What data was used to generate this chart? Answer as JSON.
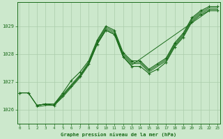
{
  "bg_color": "#cce8cc",
  "plot_bg_color": "#cce8cc",
  "grid_color": "#aaccaa",
  "line_color": "#1a6b1a",
  "title": "Graphe pression niveau de la mer (hPa)",
  "ylim": [
    1025.5,
    1029.85
  ],
  "xlim": [
    -0.3,
    23.3
  ],
  "xticks": [
    0,
    1,
    2,
    3,
    4,
    5,
    6,
    7,
    8,
    9,
    10,
    11,
    12,
    13,
    14,
    15,
    16,
    17,
    18,
    19,
    20,
    21,
    22,
    23
  ],
  "yticks": [
    1026,
    1027,
    1028,
    1029
  ],
  "ylabel_labels": [
    "1026",
    "1027",
    "1028",
    "1029"
  ],
  "lines": [
    {
      "x": [
        0,
        1,
        2,
        3,
        4,
        5,
        6,
        7,
        8,
        9,
        10,
        11,
        12,
        13,
        14,
        15,
        16,
        17,
        18,
        19,
        20,
        21,
        22,
        23
      ],
      "y": [
        1026.6,
        1026.6,
        1026.15,
        1026.2,
        1026.2,
        1026.6,
        1027.05,
        1027.35,
        1027.75,
        1028.5,
        1029.0,
        1028.85,
        1028.05,
        1027.75,
        1027.75,
        1027.45,
        1027.65,
        1027.85,
        1028.4,
        1028.75,
        1029.3,
        1029.55,
        1029.7,
        1029.7
      ],
      "marker": true
    },
    {
      "x": [
        2,
        3,
        4,
        5,
        6,
        7,
        8,
        9,
        10,
        11,
        12,
        13,
        14,
        15,
        16,
        17,
        18,
        19,
        20,
        21,
        22,
        23
      ],
      "y": [
        1026.15,
        1026.2,
        1026.2,
        1026.55,
        1026.9,
        1027.25,
        1027.7,
        1028.45,
        1028.95,
        1028.8,
        1028.0,
        1027.7,
        1027.7,
        1027.4,
        1027.6,
        1027.8,
        1028.35,
        1028.7,
        1029.25,
        1029.5,
        1029.65,
        1029.65
      ],
      "marker": false
    },
    {
      "x": [
        2,
        3,
        4,
        5,
        6,
        7,
        8,
        9,
        10,
        11,
        12,
        13,
        14,
        15,
        16,
        17,
        18,
        19,
        20,
        21,
        22,
        23
      ],
      "y": [
        1026.15,
        1026.2,
        1026.2,
        1026.5,
        1026.85,
        1027.2,
        1027.65,
        1028.4,
        1028.9,
        1028.75,
        1027.95,
        1027.65,
        1027.65,
        1027.35,
        1027.55,
        1027.75,
        1028.3,
        1028.65,
        1029.2,
        1029.45,
        1029.6,
        1029.6
      ],
      "marker": false
    },
    {
      "x": [
        2,
        3,
        4,
        5,
        6,
        7,
        8,
        9,
        10,
        11,
        12,
        13,
        22,
        23
      ],
      "y": [
        1026.1,
        1026.15,
        1026.15,
        1026.45,
        1026.8,
        1027.15,
        1027.6,
        1028.35,
        1028.85,
        1028.7,
        1027.9,
        1027.6,
        1029.55,
        1029.55
      ],
      "marker": false
    },
    {
      "x": [
        0,
        1,
        2,
        3,
        4,
        5,
        6,
        7,
        8,
        9,
        10,
        11,
        12,
        13,
        14,
        15,
        16,
        17,
        18,
        19,
        20,
        21,
        22,
        23
      ],
      "y": [
        1026.6,
        1026.6,
        1026.15,
        1026.2,
        1026.15,
        1026.5,
        1026.85,
        1027.2,
        1027.65,
        1028.35,
        1028.85,
        1028.7,
        1027.9,
        1027.55,
        1027.55,
        1027.3,
        1027.45,
        1027.7,
        1028.25,
        1028.6,
        1029.15,
        1029.4,
        1029.55,
        1029.55
      ],
      "marker": true
    }
  ]
}
